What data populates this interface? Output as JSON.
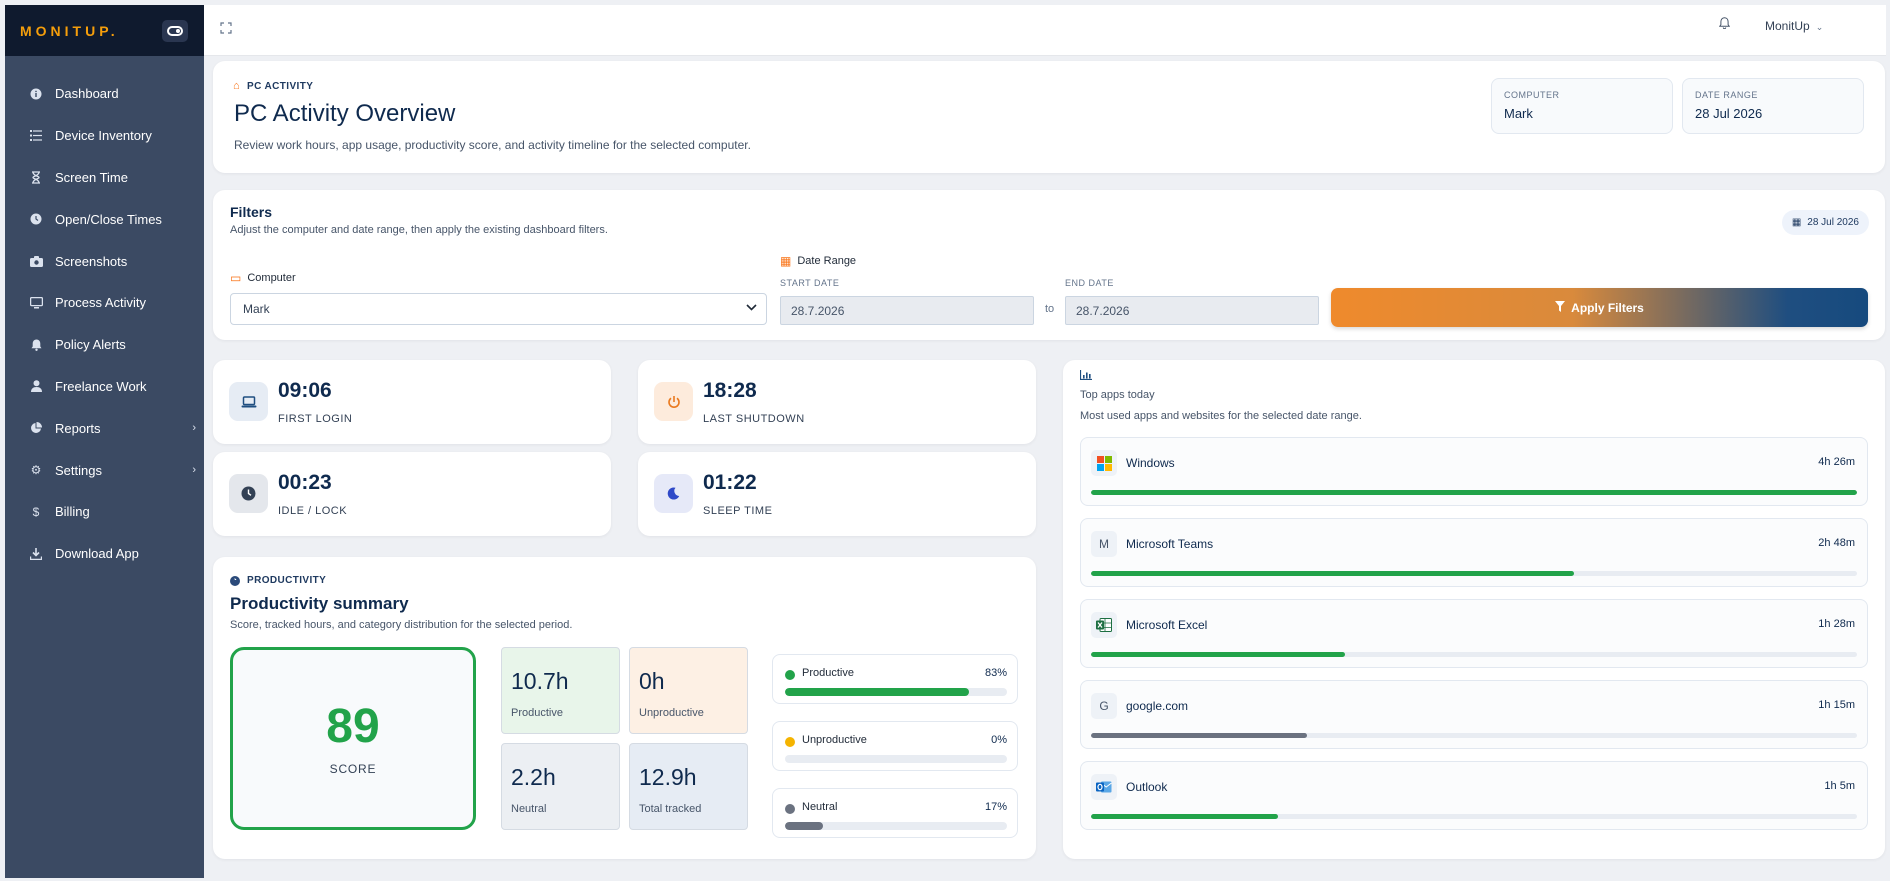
{
  "brand": {
    "name": "MONITUP",
    "dot": "."
  },
  "sidebar": {
    "items": [
      {
        "label": "Dashboard",
        "icon": "info-icon"
      },
      {
        "label": "Device Inventory",
        "icon": "list-icon"
      },
      {
        "label": "Screen Time",
        "icon": "hourglass-icon"
      },
      {
        "label": "Open/Close Times",
        "icon": "clock-icon"
      },
      {
        "label": "Screenshots",
        "icon": "camera-icon"
      },
      {
        "label": "Process Activity",
        "icon": "monitor-icon"
      },
      {
        "label": "Policy Alerts",
        "icon": "bell-icon"
      },
      {
        "label": "Freelance Work",
        "icon": "user-icon"
      },
      {
        "label": "Reports",
        "icon": "pie-chart-icon"
      },
      {
        "label": "Settings",
        "icon": "gear-icon"
      },
      {
        "label": "Billing",
        "icon": "dollar-icon"
      },
      {
        "label": "Download App",
        "icon": "download-icon"
      }
    ]
  },
  "topbar": {
    "user": "MonitUp"
  },
  "header": {
    "eyebrow": "PC ACTIVITY",
    "title": "PC Activity Overview",
    "subtitle": "Review work hours, app usage, productivity score, and activity timeline for the selected computer.",
    "computer_label": "COMPUTER",
    "computer_value": "Mark",
    "range_label": "DATE RANGE",
    "range_value": "28 Jul 2026"
  },
  "filters": {
    "title": "Filters",
    "subtitle": "Adjust the computer and date range, then apply the existing dashboard filters.",
    "date_badge": "28 Jul 2026",
    "computer_label": "Computer",
    "computer_value": "Mark",
    "range_label": "Date Range",
    "start_label": "START DATE",
    "start_value": "28.7.2026",
    "to": "to",
    "end_label": "END DATE",
    "end_value": "28.7.2026",
    "apply_label": "Apply Filters"
  },
  "stats": {
    "first_login": {
      "value": "09:06",
      "label": "FIRST LOGIN"
    },
    "last_shutdown": {
      "value": "18:28",
      "label": "LAST SHUTDOWN"
    },
    "idle": {
      "value": "00:23",
      "label": "IDLE / LOCK"
    },
    "sleep": {
      "value": "01:22",
      "label": "SLEEP TIME"
    }
  },
  "productivity": {
    "eyebrow": "PRODUCTIVITY",
    "title": "Productivity summary",
    "subtitle": "Score, tracked hours, and category distribution for the selected period.",
    "score": "89",
    "score_label": "SCORE",
    "tiles": [
      {
        "value": "10.7h",
        "label": "Productive",
        "bg": "#e8f5ea"
      },
      {
        "value": "0h",
        "label": "Unproductive",
        "bg": "#fdf0e4"
      },
      {
        "value": "2.2h",
        "label": "Neutral",
        "bg": "#eceff3"
      },
      {
        "value": "12.9h",
        "label": "Total tracked",
        "bg": "#e6ecf4"
      }
    ],
    "categories": [
      {
        "name": "Productive",
        "pct": "83%",
        "fraction": 0.83,
        "color": "#22a34a"
      },
      {
        "name": "Unproductive",
        "pct": "0%",
        "fraction": 0.0,
        "color": "#f5b400"
      },
      {
        "name": "Neutral",
        "pct": "17%",
        "fraction": 0.17,
        "color": "#6b7280"
      }
    ]
  },
  "apps": {
    "title": "Top apps today",
    "subtitle": "Most used apps and websites for the selected date range.",
    "items": [
      {
        "name": "Windows",
        "duration": "4h 26m",
        "fraction": 1.0,
        "logo": "windows-logo-icon",
        "color": "#22a34a"
      },
      {
        "name": "Microsoft Teams",
        "duration": "2h 48m",
        "fraction": 0.631,
        "logo": "letter-m-icon",
        "glyph": "M",
        "color": "#22a34a"
      },
      {
        "name": "Microsoft Excel",
        "duration": "1h 28m",
        "fraction": 0.331,
        "logo": "excel-logo-icon",
        "color": "#22a34a"
      },
      {
        "name": "google.com",
        "duration": "1h 15m",
        "fraction": 0.282,
        "logo": "letter-g-icon",
        "glyph": "G",
        "color": "#6b7280"
      },
      {
        "name": "Outlook",
        "duration": "1h 5m",
        "fraction": 0.244,
        "logo": "outlook-logo-icon",
        "color": "#22a34a"
      }
    ]
  }
}
